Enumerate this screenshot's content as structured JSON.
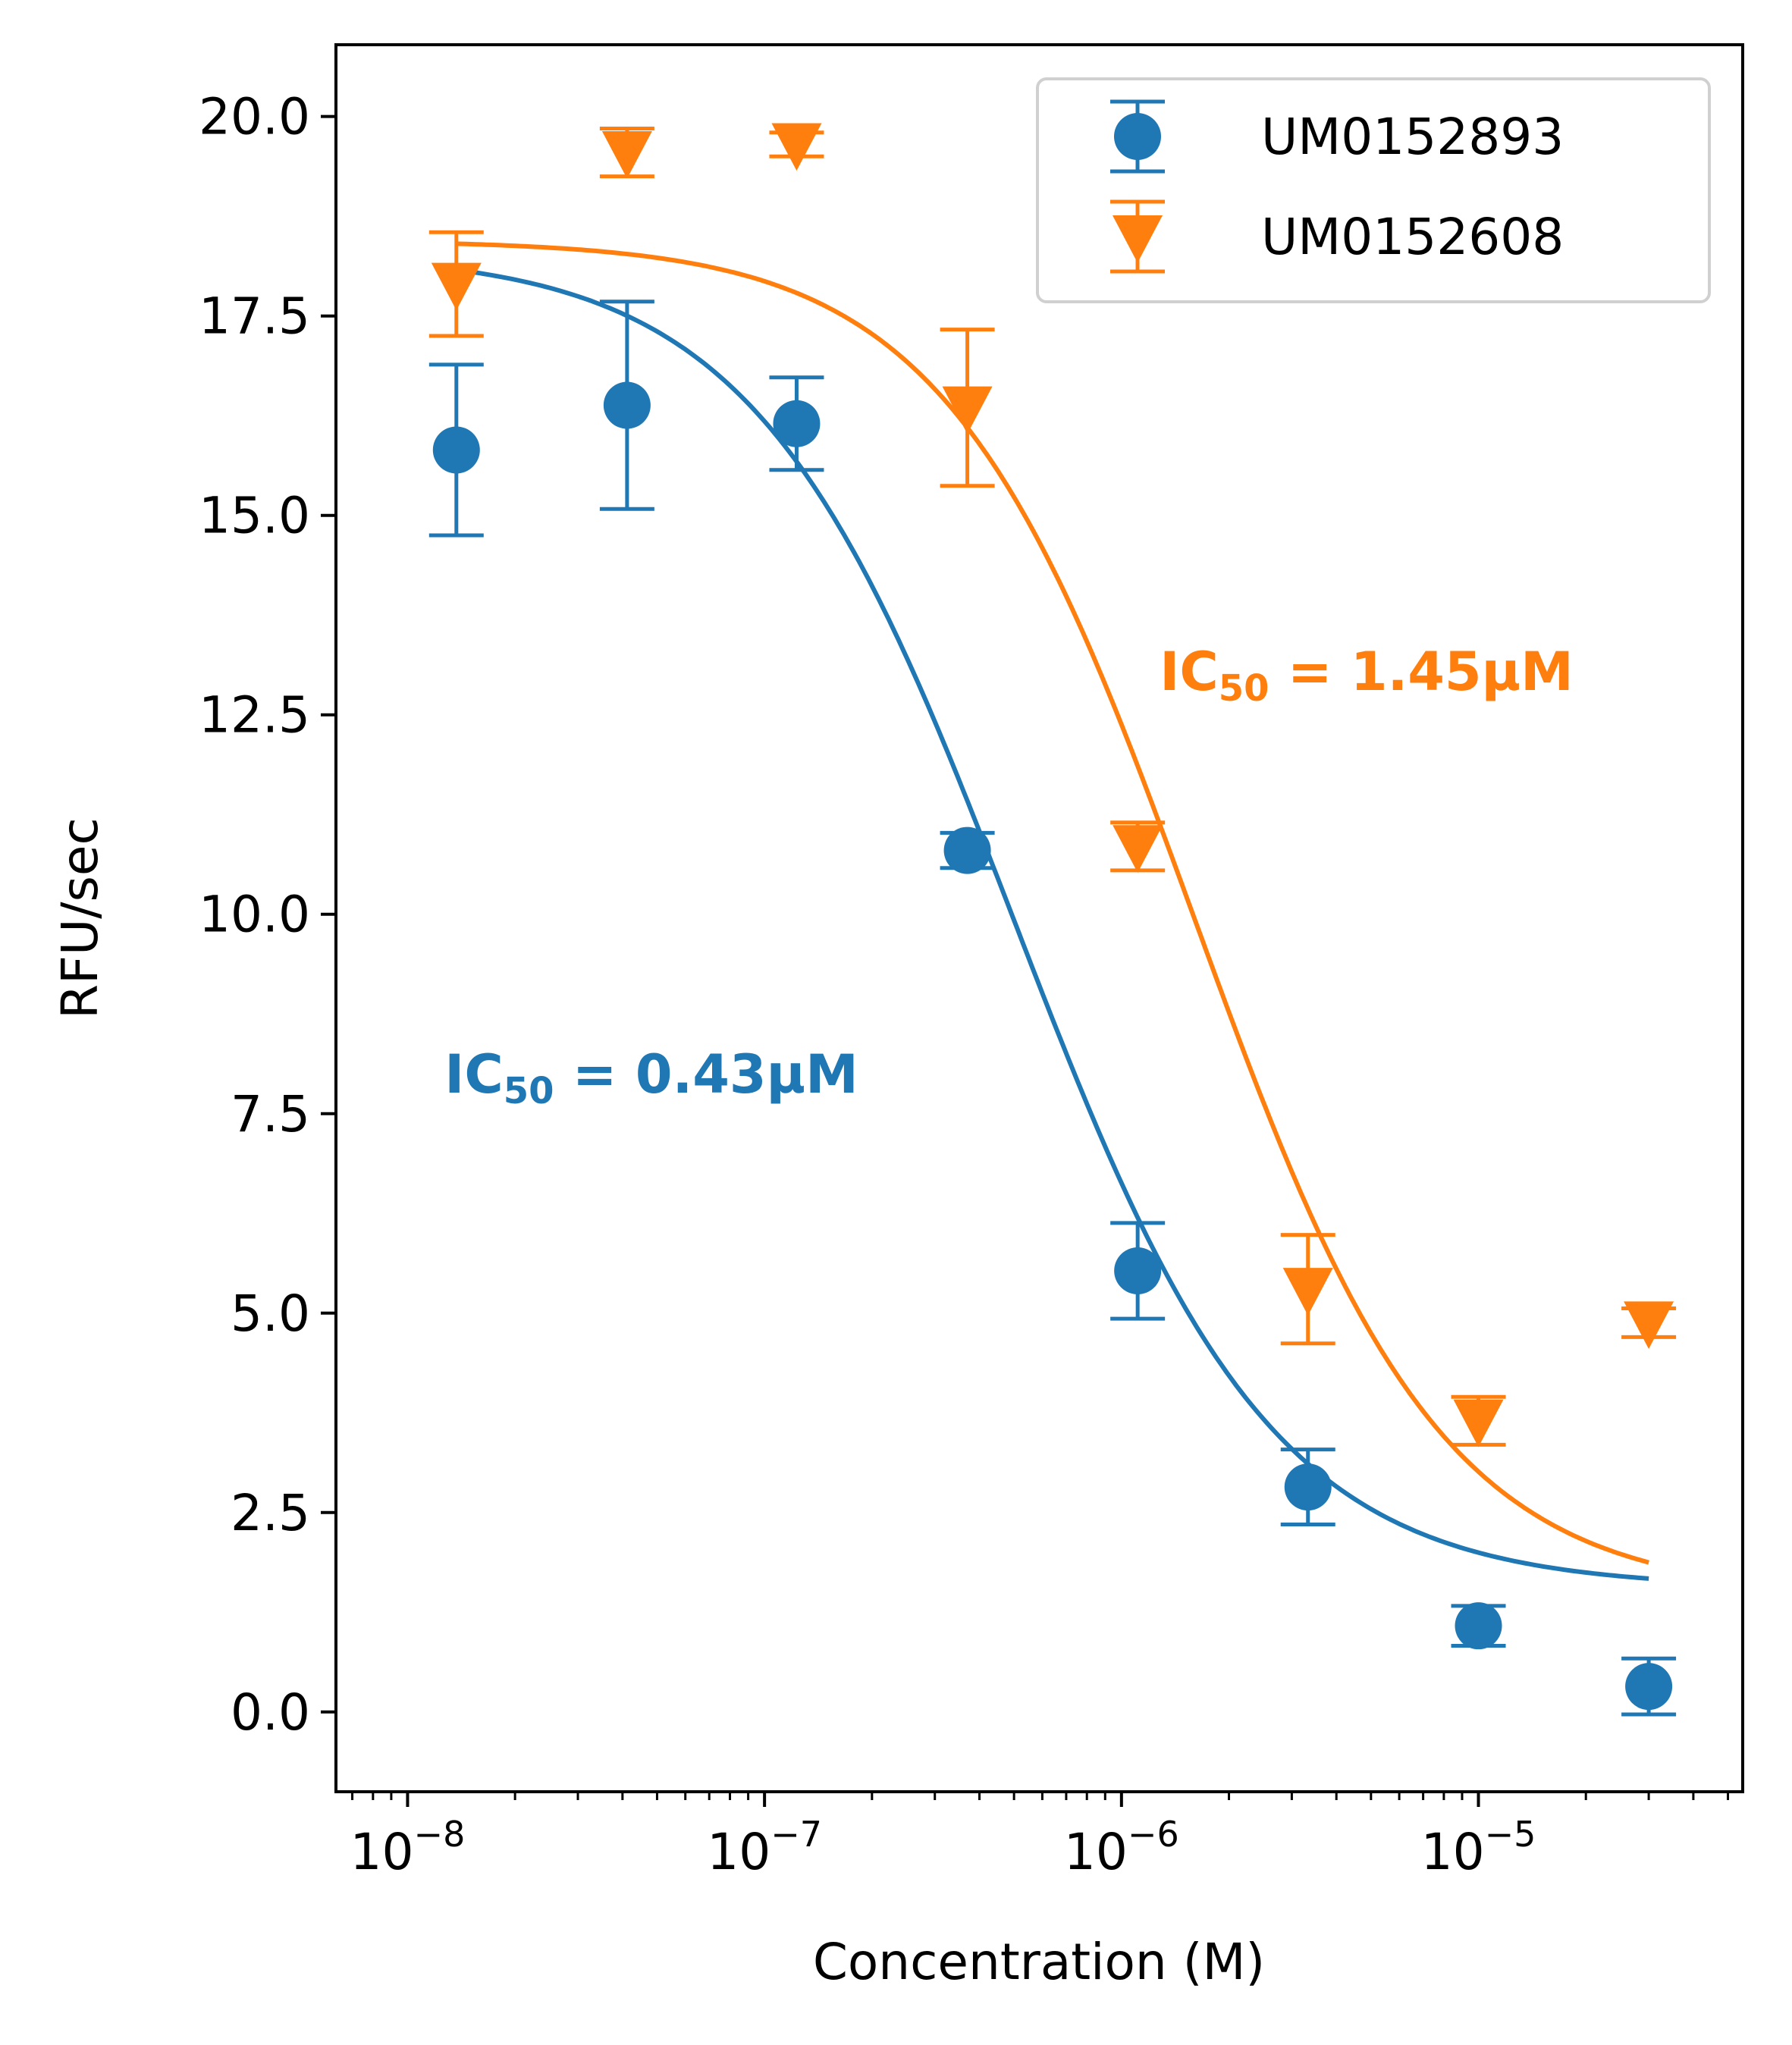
{
  "chart_data": {
    "type": "scatter",
    "title": "",
    "xlabel": "Concentration (M)",
    "ylabel": "RFU/sec",
    "xscale": "log",
    "xlim": [
      6.3e-09,
      5.5e-05
    ],
    "ylim": [
      -1.0,
      20.9
    ],
    "grid": false,
    "legend_position": "top-right",
    "x_ticks": [
      {
        "value": 1e-08,
        "base": "10",
        "exp": "−8"
      },
      {
        "value": 1e-07,
        "base": "10",
        "exp": "−7"
      },
      {
        "value": 1e-06,
        "base": "10",
        "exp": "−6"
      },
      {
        "value": 1e-05,
        "base": "10",
        "exp": "−5"
      }
    ],
    "y_ticks": [
      {
        "value": 0.0,
        "label": "0.0"
      },
      {
        "value": 2.5,
        "label": "2.5"
      },
      {
        "value": 5.0,
        "label": "5.0"
      },
      {
        "value": 7.5,
        "label": "7.5"
      },
      {
        "value": 10.0,
        "label": "10.0"
      },
      {
        "value": 12.5,
        "label": "12.5"
      },
      {
        "value": 15.0,
        "label": "15.0"
      },
      {
        "value": 17.5,
        "label": "17.5"
      },
      {
        "value": 20.0,
        "label": "20.0"
      }
    ],
    "series": [
      {
        "name": "UM0152893",
        "color": "#1f77b4",
        "marker": "circle",
        "x": [
          1.37e-08,
          4.12e-08,
          1.23e-07,
          3.7e-07,
          1.11e-06,
          3.33e-06,
          1e-05,
          3e-05
        ],
        "y": [
          15.82,
          16.38,
          16.15,
          10.8,
          5.53,
          2.82,
          1.08,
          0.32
        ],
        "err": [
          1.07,
          1.3,
          0.58,
          0.22,
          0.6,
          0.47,
          0.25,
          0.35
        ],
        "fit": {
          "bottom": 1.55,
          "top": 18.3,
          "ic50": 5e-07,
          "hill": 1.2,
          "xmin": 1.37e-08,
          "xmax": 3e-05
        },
        "annotation": {
          "prefix": "IC",
          "sub": "50",
          "suffix": " = 0.43µM",
          "x": 1.27e-08,
          "y": 8.0
        }
      },
      {
        "name": "UM0152608",
        "color": "#ff7f0e",
        "marker": "triangle-down",
        "x": [
          1.37e-08,
          4.12e-08,
          1.23e-07,
          3.7e-07,
          1.11e-06,
          3.33e-06,
          1e-05,
          3e-05
        ],
        "y": [
          17.9,
          19.55,
          19.65,
          16.35,
          10.85,
          5.3,
          3.65,
          4.88
        ],
        "err": [
          0.65,
          0.3,
          0.15,
          0.98,
          0.3,
          0.68,
          0.3,
          0.18
        ],
        "fit": {
          "bottom": 1.45,
          "top": 18.45,
          "ic50": 1.6e-06,
          "hill": 1.25,
          "xmin": 1.37e-08,
          "xmax": 3e-05
        },
        "annotation": {
          "prefix": "IC",
          "sub": "50",
          "suffix": " = 1.45µM",
          "x": 1.28e-06,
          "y": 13.05
        }
      }
    ]
  }
}
